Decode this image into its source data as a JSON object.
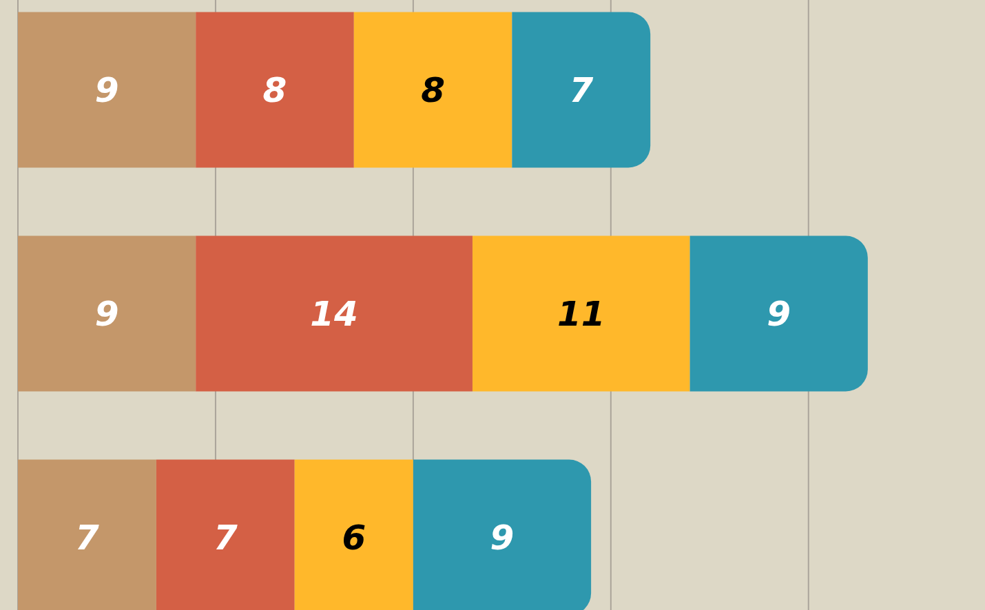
{
  "chart_data": {
    "type": "bar",
    "orientation": "horizontal",
    "stacked": true,
    "categories": [
      null,
      null,
      null
    ],
    "series": [
      {
        "color": "#c4976a",
        "values": [
          9,
          9,
          7
        ]
      },
      {
        "color": "#d46045",
        "values": [
          8,
          14,
          7
        ]
      },
      {
        "color": "#ffb82b",
        "values": [
          8,
          11,
          6
        ]
      },
      {
        "color": "#2e98ae",
        "values": [
          7,
          9,
          9
        ]
      }
    ],
    "xlim": [
      0,
      49
    ],
    "xticks": [
      {
        "value": 0,
        "label": null
      },
      {
        "value": 10,
        "label": null
      },
      {
        "value": 20,
        "label": null
      },
      {
        "value": 30,
        "label": null
      },
      {
        "value": 40,
        "label": null
      }
    ],
    "grid": "x",
    "data_labels": true,
    "legend": false
  }
}
